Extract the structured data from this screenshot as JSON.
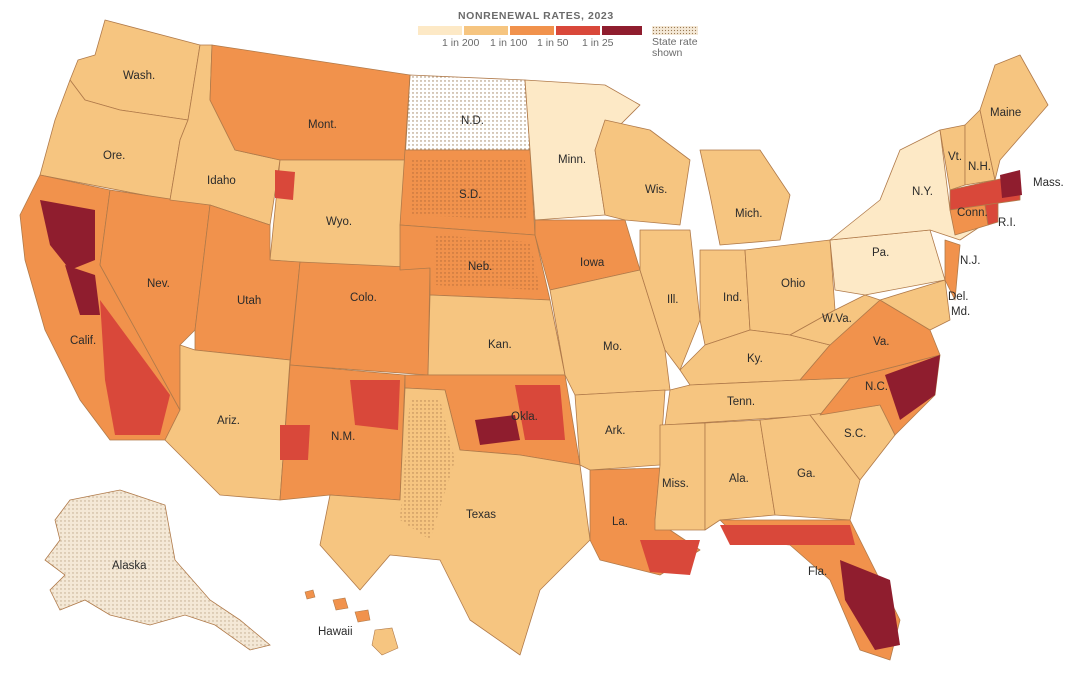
{
  "legend": {
    "title": "NONRENEWAL RATES, 2023",
    "ticks": [
      "1 in 200",
      "1 in 100",
      "1 in 50",
      "1 in 25"
    ],
    "state_rate_label_line1": "State rate",
    "state_rate_label_line2": "shown"
  },
  "colors": {
    "lowest": "#fde9c6",
    "low": "#f6c580",
    "mid": "#f1924c",
    "high": "#d9483a",
    "highest": "#8f1d2e",
    "state_rate_dots": "#9a7b55",
    "state_border": "#b07a4a"
  },
  "state_labels": {
    "wash": "Wash.",
    "ore": "Ore.",
    "calif": "Calif.",
    "idaho": "Idaho",
    "nev": "Nev.",
    "mont": "Mont.",
    "wyo": "Wyo.",
    "utah": "Utah",
    "ariz": "Ariz.",
    "colo": "Colo.",
    "nm": "N.M.",
    "nd": "N.D.",
    "sd": "S.D.",
    "neb": "Neb.",
    "kan": "Kan.",
    "okla": "Okla.",
    "texas": "Texas",
    "minn": "Minn.",
    "iowa": "Iowa",
    "mo": "Mo.",
    "ark": "Ark.",
    "la": "La.",
    "wis": "Wis.",
    "ill": "Ill.",
    "mich": "Mich.",
    "ind": "Ind.",
    "ohio": "Ohio",
    "ky": "Ky.",
    "tenn": "Tenn.",
    "miss": "Miss.",
    "ala": "Ala.",
    "ga": "Ga.",
    "fla": "Fla.",
    "sc": "S.C.",
    "nc": "N.C.",
    "va": "Va.",
    "wva": "W.Va.",
    "pa": "Pa.",
    "ny": "N.Y.",
    "vt": "Vt.",
    "nh": "N.H.",
    "maine": "Maine",
    "mass": "Mass.",
    "ri": "R.I.",
    "conn": "Conn.",
    "nj": "N.J.",
    "del": "Del.",
    "md": "Md.",
    "alaska": "Alaska",
    "hawaii": "Hawaii"
  }
}
